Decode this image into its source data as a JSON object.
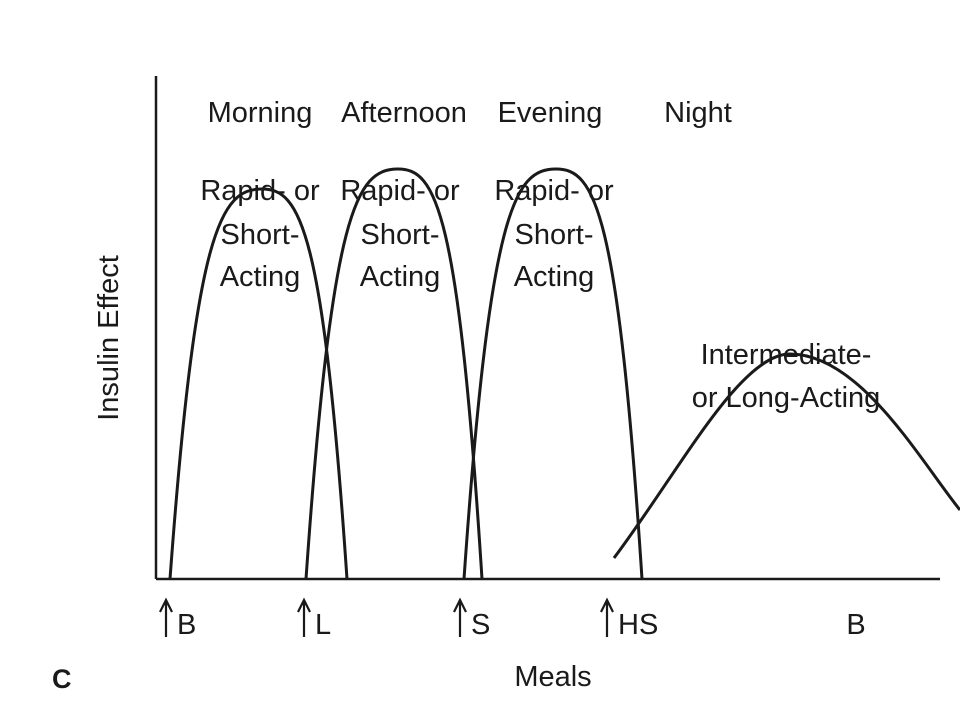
{
  "chart_data": {
    "type": "line",
    "panel_label": "C",
    "ylabel": "Insulin Effect",
    "xlabel": "Meals",
    "periods": [
      "Morning",
      "Afternoon",
      "Evening",
      "Night"
    ],
    "insulin_labels": [
      [
        "Rapid- or",
        "Short-",
        "Acting"
      ],
      [
        "Rapid- or",
        "Short-",
        "Acting"
      ],
      [
        "Rapid- or",
        "Short-",
        "Acting"
      ]
    ],
    "long_acting_label": [
      "Intermediate-",
      "or Long-Acting"
    ],
    "meal_markers": [
      {
        "label": "B",
        "arrow": true
      },
      {
        "label": "L",
        "arrow": true
      },
      {
        "label": "S",
        "arrow": true
      },
      {
        "label": "HS",
        "arrow": true
      },
      {
        "label": "B",
        "arrow": false
      }
    ],
    "series": [
      {
        "peak_effect": 0.78
      },
      {
        "peak_effect": 0.82
      },
      {
        "peak_effect": 0.82
      },
      {
        "peak_effect": 0.45
      }
    ]
  }
}
